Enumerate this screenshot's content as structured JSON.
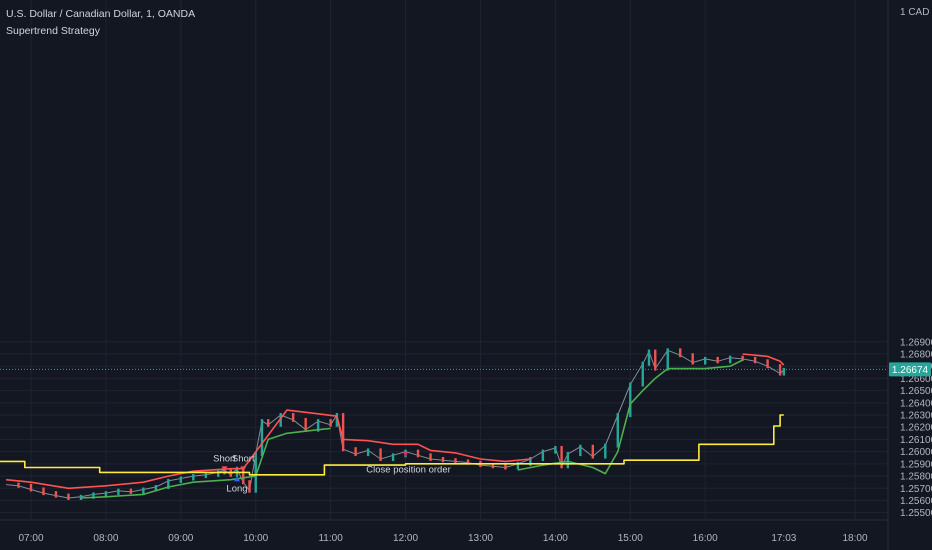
{
  "header": {
    "symbol_line": "U.S. Dollar / Canadian Dollar, 1, OANDA",
    "study_line": "Supertrend Strategy"
  },
  "colors": {
    "background": "#131722",
    "grid": "#1f2333",
    "up_candle": "#26a69a",
    "down_candle": "#ef5350",
    "supertrend_up": "#4caf50",
    "supertrend_down": "#ff5252",
    "higher_tf_line": "#ffeb3b",
    "price_line": "#26a69a"
  },
  "chart_data": {
    "type": "line",
    "title": "U.S. Dollar / Canadian Dollar, 1, OANDA",
    "subtitle": "Supertrend Strategy",
    "ylabel": "CAD",
    "y_unit_label": "1 CAD",
    "ylim": [
      1.2544,
      1.297
    ],
    "y_ticks": [
      "1.26900",
      "1.26800",
      "1.26700",
      "1.26600",
      "1.26500",
      "1.26400",
      "1.26300",
      "1.26200",
      "1.26100",
      "1.26000",
      "1.25900",
      "1.25800",
      "1.25700",
      "1.25600",
      "1.25500"
    ],
    "x_ticks": [
      "07:00",
      "08:00",
      "09:00",
      "10:00",
      "11:00",
      "12:00",
      "13:00",
      "14:00",
      "15:00",
      "16:00",
      "17:03",
      "18:00"
    ],
    "last_price": "1.26674",
    "series": [
      {
        "name": "",
        "kind": "price-close",
        "points": [
          [
            "06:40",
            1.2573
          ],
          [
            "06:50",
            1.2572
          ],
          [
            "07:00",
            1.2569
          ],
          [
            "07:10",
            1.2566
          ],
          [
            "07:20",
            1.2564
          ],
          [
            "07:30",
            1.2562
          ],
          [
            "07:40",
            1.2563
          ],
          [
            "07:50",
            1.2565
          ],
          [
            "08:00",
            1.2566
          ],
          [
            "08:10",
            1.2568
          ],
          [
            "08:20",
            1.2567
          ],
          [
            "08:30",
            1.2569
          ],
          [
            "08:40",
            1.2571
          ],
          [
            "08:50",
            1.2576
          ],
          [
            "09:00",
            1.2578
          ],
          [
            "09:10",
            1.258
          ],
          [
            "09:20",
            1.2581
          ],
          [
            "09:30",
            1.2583
          ],
          [
            "09:35",
            1.2585
          ],
          [
            "09:40",
            1.2581
          ],
          [
            "09:45",
            1.2586
          ],
          [
            "09:50",
            1.2575
          ],
          [
            "09:55",
            1.2568
          ],
          [
            "10:00",
            1.2598
          ],
          [
            "10:05",
            1.2625
          ],
          [
            "10:10",
            1.2622
          ],
          [
            "10:20",
            1.263
          ],
          [
            "10:30",
            1.2626
          ],
          [
            "10:40",
            1.2618
          ],
          [
            "10:50",
            1.2625
          ],
          [
            "11:00",
            1.2622
          ],
          [
            "11:05",
            1.263
          ],
          [
            "11:10",
            1.2602
          ],
          [
            "11:20",
            1.2598
          ],
          [
            "11:30",
            1.2601
          ],
          [
            "11:40",
            1.2594
          ],
          [
            "11:50",
            1.2597
          ],
          [
            "12:00",
            1.26
          ],
          [
            "12:10",
            1.2597
          ],
          [
            "12:20",
            1.2594
          ],
          [
            "12:30",
            1.2593
          ],
          [
            "12:40",
            1.2592
          ],
          [
            "12:50",
            1.2591
          ],
          [
            "13:00",
            1.2589
          ],
          [
            "13:10",
            1.2588
          ],
          [
            "13:20",
            1.2587
          ],
          [
            "13:30",
            1.259
          ],
          [
            "13:40",
            1.2594
          ],
          [
            "13:50",
            1.26
          ],
          [
            "14:00",
            1.2603
          ],
          [
            "14:05",
            1.2588
          ],
          [
            "14:10",
            1.2598
          ],
          [
            "14:20",
            1.2604
          ],
          [
            "14:30",
            1.2596
          ],
          [
            "14:40",
            1.2605
          ],
          [
            "14:50",
            1.263
          ],
          [
            "15:00",
            1.2655
          ],
          [
            "15:10",
            1.2672
          ],
          [
            "15:15",
            1.2682
          ],
          [
            "15:20",
            1.2668
          ],
          [
            "15:30",
            1.2683
          ],
          [
            "15:40",
            1.2679
          ],
          [
            "15:50",
            1.2673
          ],
          [
            "16:00",
            1.2676
          ],
          [
            "16:10",
            1.2674
          ],
          [
            "16:20",
            1.2677
          ],
          [
            "16:30",
            1.2676
          ],
          [
            "16:40",
            1.2674
          ],
          [
            "16:50",
            1.267
          ],
          [
            "17:00",
            1.2664
          ],
          [
            "17:03",
            1.2667
          ]
        ]
      },
      {
        "name": "",
        "kind": "supertrend-down",
        "points": [
          [
            "06:40",
            1.2577
          ],
          [
            "07:00",
            1.2575
          ],
          [
            "07:30",
            1.257
          ],
          [
            "08:00",
            1.2572
          ],
          [
            "08:30",
            1.2575
          ],
          [
            "08:50",
            1.258
          ],
          [
            "09:10",
            1.2584
          ],
          [
            "09:40",
            1.2586
          ],
          [
            "09:50",
            1.2586
          ],
          [
            "10:25",
            1.2634
          ],
          [
            "10:50",
            1.2631
          ],
          [
            "11:05",
            1.2629
          ],
          [
            "11:10",
            1.261
          ],
          [
            "11:30",
            1.2609
          ],
          [
            "11:50",
            1.2606
          ],
          [
            "12:10",
            1.2606
          ],
          [
            "12:20",
            1.2601
          ],
          [
            "12:40",
            1.2599
          ],
          [
            "13:00",
            1.2594
          ],
          [
            "13:20",
            1.2592
          ],
          [
            "13:40",
            1.2594
          ]
        ]
      },
      {
        "name": "",
        "kind": "supertrend-down",
        "points": [
          [
            "16:30",
            1.268
          ],
          [
            "16:50",
            1.2678
          ],
          [
            "17:00",
            1.2674
          ],
          [
            "17:03",
            1.2671
          ]
        ]
      },
      {
        "name": "",
        "kind": "supertrend-up",
        "points": [
          [
            "07:40",
            1.2562
          ],
          [
            "08:00",
            1.2563
          ],
          [
            "08:30",
            1.2565
          ],
          [
            "08:50",
            1.2571
          ],
          [
            "09:10",
            1.2575
          ],
          [
            "09:40",
            1.2577
          ],
          [
            "10:00",
            1.258
          ],
          [
            "10:10",
            1.261
          ],
          [
            "10:25",
            1.2615
          ],
          [
            "10:50",
            1.2618
          ],
          [
            "11:00",
            1.2619
          ]
        ]
      },
      {
        "name": "",
        "kind": "supertrend-up",
        "points": [
          [
            "13:30",
            1.2585
          ],
          [
            "13:50",
            1.2589
          ],
          [
            "14:10",
            1.2592
          ],
          [
            "14:30",
            1.2587
          ],
          [
            "14:40",
            1.2582
          ],
          [
            "14:50",
            1.26
          ],
          [
            "15:00",
            1.2639
          ],
          [
            "15:10",
            1.265
          ],
          [
            "15:20",
            1.266
          ],
          [
            "15:30",
            1.2668
          ],
          [
            "16:00",
            1.2668
          ],
          [
            "16:20",
            1.267
          ],
          [
            "16:30",
            1.2675
          ]
        ]
      },
      {
        "name": "",
        "kind": "higher-timeframe",
        "points": [
          [
            "06:35",
            1.2592
          ],
          [
            "06:55",
            1.2592
          ],
          [
            "06:55",
            1.2587
          ],
          [
            "07:55",
            1.2587
          ],
          [
            "07:55",
            1.2583
          ],
          [
            "09:55",
            1.2583
          ],
          [
            "09:55",
            1.2581
          ],
          [
            "10:55",
            1.2581
          ],
          [
            "10:55",
            1.2589
          ],
          [
            "12:00",
            1.2589
          ],
          [
            "12:00",
            1.259
          ],
          [
            "14:55",
            1.259
          ],
          [
            "14:55",
            1.2593
          ],
          [
            "15:55",
            1.2593
          ],
          [
            "15:55",
            1.2606
          ],
          [
            "16:55",
            1.2606
          ],
          [
            "16:55",
            1.2621
          ],
          [
            "17:00",
            1.2621
          ],
          [
            "17:00",
            1.263
          ],
          [
            "17:03",
            1.263
          ]
        ]
      }
    ],
    "annotations": [
      {
        "text": "Short",
        "x": "09:35",
        "y": 1.2592,
        "kind": "sell"
      },
      {
        "text": "Short",
        "x": "09:50",
        "y": 1.2592,
        "kind": "sell"
      },
      {
        "text": "Long",
        "x": "09:45",
        "y": 1.2574,
        "kind": "buy"
      },
      {
        "text": "Close position order",
        "x": "12:00",
        "y": 1.2588,
        "kind": "close"
      }
    ],
    "grid": true,
    "legend": "none"
  }
}
